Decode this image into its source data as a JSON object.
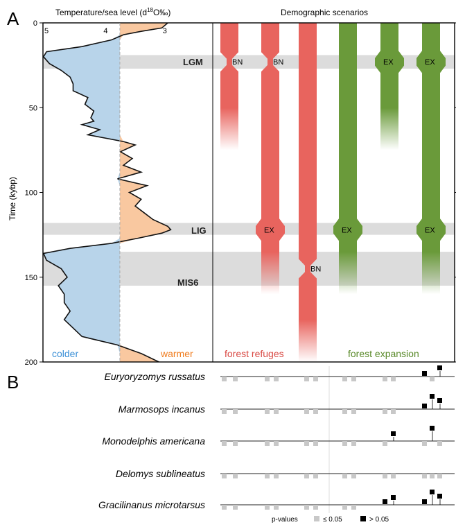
{
  "panels": {
    "a": "A",
    "b": "B"
  },
  "panel_a": {
    "temp_title": "Temperature/sea level (d",
    "temp_title_sup": "18",
    "temp_title_end": "O‰)",
    "scen_title": "Demographic scenarios",
    "y_axis_label": "Time (kybp)",
    "y_ticks": [
      "0",
      "50",
      "100",
      "150",
      "200"
    ],
    "x_ticks": [
      "5",
      "4",
      "3"
    ],
    "periods": [
      "LGM",
      "LIG",
      "MIS6"
    ],
    "colder": "colder",
    "warmer": "warmer",
    "forest_refuges": "forest refuges",
    "forest_expansion": "forest expansion",
    "events": [
      "BN",
      "BN",
      "EX",
      "BN",
      "EX",
      "EX",
      "EX",
      "EX"
    ]
  },
  "panel_b": {
    "species": [
      "Euryoryzomys russatus",
      "Marmosops incanus",
      "Monodelphis americana",
      "Delomys sublineatus",
      "Gracilinanus microtarsus"
    ],
    "legend_title": "p-values",
    "legend_sig": "≤ 0.05",
    "legend_nonsig": "> 0.05"
  },
  "colors": {
    "cold": "#b8d4ea",
    "warm": "#f9c8a0",
    "refuge": "#e8645e",
    "expansion": "#6a9a3a",
    "band": "#dcdcdc",
    "sig_marker": "#c8c8c8",
    "nonsig_marker": "#000000",
    "colder_text": "#3a8fd6",
    "warmer_text": "#f07c1e",
    "refuge_text": "#d94a44",
    "expansion_text": "#5a8a2a"
  },
  "chart_data": {
    "type": "area",
    "title": "Temperature/sea level (d18O‰)",
    "ylabel": "Time (kybp)",
    "ylim": [
      0,
      200
    ],
    "xlim": [
      5.2,
      2.7
    ],
    "x_ticks": [
      5,
      4,
      3
    ],
    "y_ticks": [
      0,
      50,
      100,
      150,
      200
    ],
    "threshold": 3.76,
    "series": [
      {
        "time": [
          0,
          3,
          5,
          7,
          10,
          14,
          17,
          20,
          24,
          28,
          32,
          36,
          40,
          44,
          48,
          52,
          56,
          58,
          60,
          63,
          66,
          70,
          72,
          76,
          80,
          84,
          88,
          92,
          96,
          100,
          104,
          108,
          112,
          116,
          120,
          122,
          124,
          127,
          130,
          133,
          136,
          140,
          145,
          150,
          155,
          160,
          165,
          170,
          175,
          180,
          185,
          190,
          195,
          200
        ],
        "d18O": [
          2.95,
          3.05,
          3.4,
          3.7,
          3.9,
          4.4,
          5.0,
          5.05,
          4.95,
          4.75,
          4.6,
          4.55,
          4.55,
          4.3,
          4.35,
          4.2,
          4.25,
          4.2,
          4.4,
          4.1,
          4.3,
          3.7,
          3.5,
          3.75,
          3.55,
          3.7,
          3.4,
          3.8,
          3.3,
          3.6,
          3.4,
          3.5,
          3.35,
          3.2,
          2.95,
          2.9,
          3.05,
          3.45,
          3.9,
          4.6,
          5.05,
          5.0,
          4.75,
          4.65,
          4.8,
          4.7,
          4.7,
          4.6,
          4.7,
          4.55,
          4.4,
          3.8,
          3.4,
          3.1
        ]
      }
    ],
    "bands": [
      {
        "name": "LGM",
        "from": 19,
        "to": 27
      },
      {
        "name": "LIG",
        "from": 118,
        "to": 125
      },
      {
        "name": "MIS6",
        "from": 135,
        "to": 155
      }
    ],
    "scenarios": [
      {
        "group": "forest refuges",
        "end": 75,
        "events": [
          {
            "label": "BN",
            "time": 23
          }
        ]
      },
      {
        "group": "forest refuges",
        "end": 160,
        "events": [
          {
            "label": "BN",
            "time": 23
          },
          {
            "label": "EX",
            "time": 122
          }
        ]
      },
      {
        "group": "forest refuges",
        "end": 200,
        "events": [
          {
            "label": "BN",
            "time": 145
          }
        ]
      },
      {
        "group": "forest expansion",
        "end": 160,
        "events": [
          {
            "label": "EX",
            "time": 122
          }
        ]
      },
      {
        "group": "forest expansion",
        "end": 75,
        "events": [
          {
            "label": "EX",
            "time": 23
          }
        ]
      },
      {
        "group": "forest expansion",
        "end": 160,
        "events": [
          {
            "label": "EX",
            "time": 23
          },
          {
            "label": "EX",
            "time": 122
          }
        ]
      }
    ],
    "p_value_scenarios": [
      {
        "species": "Euryoryzomys russatus",
        "values": [
          0,
          0,
          0,
          0,
          0,
          0,
          0,
          0,
          0,
          0,
          1,
          0,
          1,
          1,
          0
        ]
      },
      {
        "species": "Marmosops incanus",
        "values": [
          0,
          0,
          0,
          0,
          0,
          0,
          0,
          0,
          0,
          0,
          1,
          1,
          1,
          1,
          1
        ]
      },
      {
        "species": "Monodelphis americana",
        "values": [
          0,
          0,
          0,
          0,
          0,
          0,
          0,
          0,
          0,
          1,
          0,
          1,
          0,
          1,
          1
        ]
      },
      {
        "species": "Delomys sublineatus",
        "values": [
          0,
          0,
          0,
          0,
          0,
          0,
          0,
          0,
          0,
          0,
          0,
          0,
          0,
          0,
          1
        ]
      },
      {
        "species": "Gracilinanus microtarsus",
        "values": [
          0,
          0,
          0,
          0,
          0,
          0,
          0,
          0,
          1,
          1,
          1,
          1,
          1,
          1,
          1
        ]
      }
    ]
  }
}
